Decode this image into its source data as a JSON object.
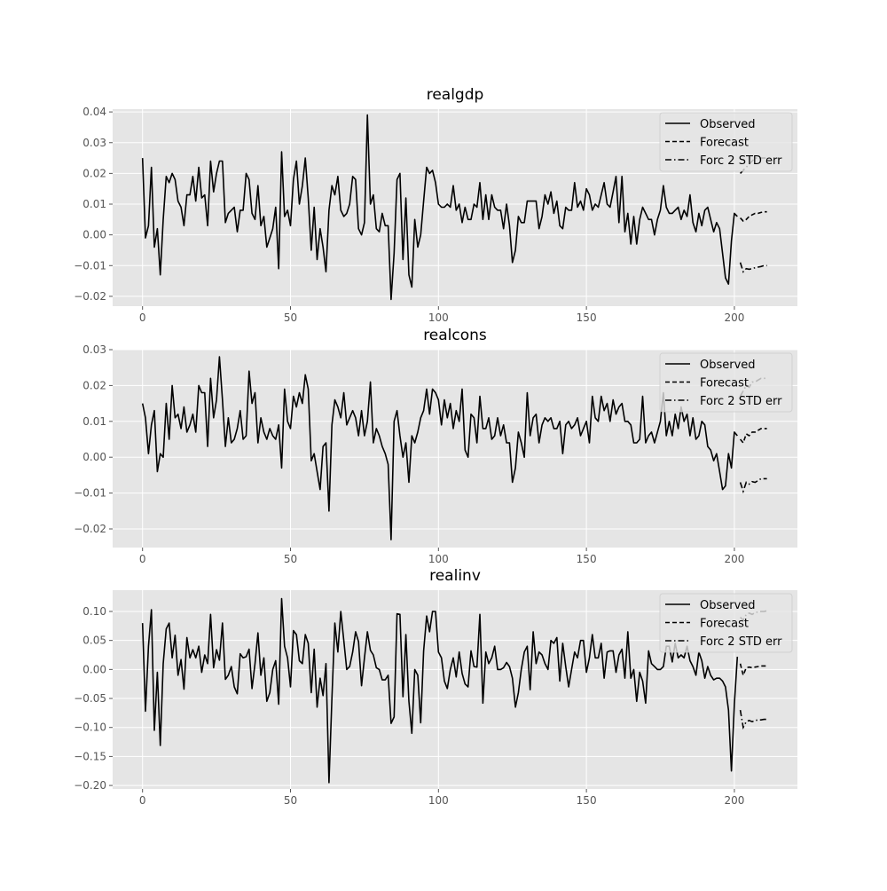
{
  "chart_data": [
    {
      "type": "line",
      "title": "realgdp",
      "xlim": [
        -10.1,
        221.3
      ],
      "ylim": [
        -0.0232,
        0.0409
      ],
      "xticks": [
        0,
        50,
        100,
        150,
        200
      ],
      "yticks": [
        -0.02,
        -0.01,
        0.0,
        0.01,
        0.02,
        0.03,
        0.04
      ],
      "ytick_labels": [
        "−0.02",
        "−0.01",
        "0.00",
        "0.01",
        "0.02",
        "0.03",
        "0.04"
      ],
      "grid": true,
      "legend_placement": "upper-right",
      "legend": [
        "Observed",
        "Forecast",
        "Forc 2 STD err"
      ],
      "observed": [
        0.025,
        -0.001,
        0.003,
        0.022,
        -0.004,
        0.002,
        -0.013,
        0.005,
        0.019,
        0.017,
        0.02,
        0.018,
        0.011,
        0.009,
        0.003,
        0.013,
        0.013,
        0.019,
        0.011,
        0.022,
        0.012,
        0.013,
        0.003,
        0.024,
        0.014,
        0.02,
        0.024,
        0.024,
        0.004,
        0.007,
        0.008,
        0.009,
        0.001,
        0.008,
        0.008,
        0.02,
        0.018,
        0.007,
        0.005,
        0.016,
        0.003,
        0.006,
        -0.004,
        -0.001,
        0.002,
        0.009,
        -0.011,
        0.027,
        0.006,
        0.008,
        0.003,
        0.018,
        0.024,
        0.01,
        0.016,
        0.025,
        0.012,
        -0.005,
        0.009,
        -0.008,
        0.002,
        -0.004,
        -0.012,
        0.008,
        0.016,
        0.013,
        0.019,
        0.008,
        0.006,
        0.007,
        0.01,
        0.019,
        0.018,
        0.002,
        0.0,
        0.004,
        0.039,
        0.01,
        0.013,
        0.002,
        0.001,
        0.007,
        0.003,
        0.003,
        -0.021,
        -0.006,
        0.018,
        0.02,
        -0.008,
        0.012,
        -0.013,
        -0.017,
        0.005,
        -0.004,
        0.0,
        0.011,
        0.022,
        0.02,
        0.021,
        0.017,
        0.01,
        0.009,
        0.009,
        0.01,
        0.009,
        0.016,
        0.008,
        0.01,
        0.004,
        0.009,
        0.005,
        0.005,
        0.01,
        0.009,
        0.017,
        0.005,
        0.013,
        0.005,
        0.013,
        0.009,
        0.008,
        0.008,
        0.002,
        0.01,
        0.003,
        -0.009,
        -0.005,
        0.006,
        0.004,
        0.004,
        0.011,
        0.011,
        0.011,
        0.011,
        0.002,
        0.006,
        0.013,
        0.01,
        0.014,
        0.007,
        0.011,
        0.003,
        0.002,
        0.009,
        0.008,
        0.008,
        0.017,
        0.009,
        0.011,
        0.008,
        0.015,
        0.013,
        0.008,
        0.01,
        0.009,
        0.013,
        0.017,
        0.01,
        0.009,
        0.014,
        0.019,
        0.004,
        0.019,
        0.001,
        0.007,
        -0.003,
        0.006,
        -0.003,
        0.005,
        0.009,
        0.007,
        0.005,
        0.005,
        0.0,
        0.005,
        0.008,
        0.016,
        0.009,
        0.007,
        0.007,
        0.008,
        0.009,
        0.005,
        0.008,
        0.006,
        0.013,
        0.004,
        0.001,
        0.007,
        0.003,
        0.008,
        0.009,
        0.005,
        0.001,
        0.004,
        0.002,
        -0.006,
        -0.014,
        -0.016,
        -0.002,
        0.007,
        0.006
      ],
      "forecast_x": [
        202,
        203,
        204,
        205,
        206,
        207,
        208,
        209,
        210,
        211
      ],
      "forecast": [
        0.0055,
        0.0045,
        0.005,
        0.006,
        0.0065,
        0.007,
        0.007,
        0.0073,
        0.0075,
        0.0075
      ],
      "lower": [
        -0.009,
        -0.012,
        -0.011,
        -0.0112,
        -0.011,
        -0.0107,
        -0.0105,
        -0.0103,
        -0.01,
        -0.01
      ],
      "upper": [
        0.02,
        0.021,
        0.022,
        0.023,
        0.024,
        0.025,
        0.025,
        0.025,
        0.025,
        0.025
      ]
    },
    {
      "type": "line",
      "title": "realcons",
      "xlim": [
        -10.1,
        221.3
      ],
      "ylim": [
        -0.0252,
        0.03
      ],
      "xticks": [
        0,
        50,
        100,
        150,
        200
      ],
      "yticks": [
        -0.02,
        -0.01,
        0.0,
        0.01,
        0.02,
        0.03
      ],
      "ytick_labels": [
        "−0.02",
        "−0.01",
        "0.00",
        "0.01",
        "0.02",
        "0.03"
      ],
      "grid": true,
      "legend_placement": "upper-right",
      "legend": [
        "Observed",
        "Forecast",
        "Forc 2 STD err"
      ],
      "observed": [
        0.015,
        0.011,
        0.001,
        0.009,
        0.013,
        -0.004,
        0.001,
        0.0,
        0.015,
        0.005,
        0.02,
        0.011,
        0.012,
        0.008,
        0.014,
        0.007,
        0.009,
        0.012,
        0.007,
        0.02,
        0.018,
        0.018,
        0.003,
        0.022,
        0.011,
        0.016,
        0.028,
        0.016,
        0.003,
        0.011,
        0.004,
        0.005,
        0.008,
        0.013,
        0.005,
        0.006,
        0.024,
        0.015,
        0.018,
        0.004,
        0.011,
        0.007,
        0.005,
        0.008,
        0.006,
        0.005,
        0.009,
        -0.003,
        0.019,
        0.01,
        0.008,
        0.017,
        0.014,
        0.018,
        0.015,
        0.023,
        0.019,
        -0.001,
        0.001,
        -0.004,
        -0.009,
        0.003,
        0.004,
        -0.015,
        0.009,
        0.016,
        0.014,
        0.011,
        0.018,
        0.009,
        0.011,
        0.013,
        0.011,
        0.006,
        0.013,
        0.006,
        0.01,
        0.021,
        0.004,
        0.008,
        0.006,
        0.003,
        0.001,
        -0.002,
        -0.023,
        0.01,
        0.013,
        0.006,
        0.0,
        0.004,
        -0.007,
        0.006,
        0.004,
        0.007,
        0.011,
        0.013,
        0.019,
        0.012,
        0.019,
        0.018,
        0.016,
        0.009,
        0.016,
        0.011,
        0.015,
        0.008,
        0.013,
        0.01,
        0.019,
        0.002,
        0.0,
        0.012,
        0.011,
        0.004,
        0.017,
        0.008,
        0.008,
        0.011,
        0.005,
        0.006,
        0.011,
        0.006,
        0.009,
        0.004,
        0.004,
        -0.007,
        -0.003,
        0.007,
        0.004,
        0.0,
        0.018,
        0.006,
        0.011,
        0.012,
        0.004,
        0.009,
        0.011,
        0.01,
        0.011,
        0.008,
        0.008,
        0.01,
        0.001,
        0.009,
        0.01,
        0.008,
        0.009,
        0.011,
        0.006,
        0.008,
        0.01,
        0.004,
        0.017,
        0.011,
        0.01,
        0.017,
        0.013,
        0.015,
        0.01,
        0.016,
        0.012,
        0.014,
        0.015,
        0.01,
        0.01,
        0.009,
        0.004,
        0.004,
        0.005,
        0.017,
        0.004,
        0.006,
        0.007,
        0.004,
        0.007,
        0.01,
        0.018,
        0.006,
        0.01,
        0.006,
        0.012,
        0.008,
        0.014,
        0.01,
        0.012,
        0.006,
        0.011,
        0.005,
        0.006,
        0.01,
        0.009,
        0.003,
        0.002,
        -0.001,
        0.001,
        -0.004,
        -0.009,
        -0.008,
        0.001,
        -0.003,
        0.007,
        0.006
      ],
      "forecast_x": [
        202,
        203,
        204,
        205,
        206,
        207,
        208,
        209,
        210,
        211
      ],
      "forecast": [
        0.005,
        0.004,
        0.0065,
        0.006,
        0.007,
        0.007,
        0.0075,
        0.008,
        0.008,
        0.008
      ],
      "lower": [
        -0.007,
        -0.0095,
        -0.007,
        -0.0075,
        -0.0068,
        -0.007,
        -0.0065,
        -0.006,
        -0.006,
        -0.006
      ],
      "upper": [
        0.017,
        0.0185,
        0.02,
        0.0195,
        0.021,
        0.021,
        0.0215,
        0.022,
        0.022,
        0.022
      ]
    },
    {
      "type": "line",
      "title": "realinv",
      "xlim": [
        -10.1,
        221.3
      ],
      "ylim": [
        -0.206,
        0.1367
      ],
      "xticks": [
        0,
        50,
        100,
        150,
        200
      ],
      "yticks": [
        -0.2,
        -0.15,
        -0.1,
        -0.05,
        0.0,
        0.05,
        0.1
      ],
      "ytick_labels": [
        "−0.20",
        "−0.15",
        "−0.10",
        "−0.05",
        "0.00",
        "0.05",
        "0.10"
      ],
      "grid": true,
      "legend_placement": "upper-right",
      "legend": [
        "Observed",
        "Forecast",
        "Forc 2 STD err"
      ],
      "observed": [
        0.08,
        -0.072,
        0.04,
        0.103,
        -0.105,
        -0.005,
        -0.131,
        0.01,
        0.07,
        0.08,
        0.02,
        0.059,
        -0.01,
        0.017,
        -0.034,
        0.055,
        0.02,
        0.034,
        0.02,
        0.04,
        -0.005,
        0.025,
        0.01,
        0.095,
        0.003,
        0.034,
        0.016,
        0.08,
        -0.017,
        -0.01,
        0.005,
        -0.03,
        -0.042,
        0.027,
        0.02,
        0.022,
        0.035,
        -0.033,
        0.01,
        0.063,
        -0.01,
        0.02,
        -0.055,
        -0.04,
        0.0,
        0.015,
        -0.06,
        0.122,
        0.04,
        0.02,
        -0.03,
        0.067,
        0.06,
        0.015,
        0.01,
        0.06,
        0.045,
        -0.04,
        0.035,
        -0.065,
        -0.015,
        -0.045,
        0.01,
        -0.195,
        -0.05,
        0.08,
        0.03,
        0.1,
        0.05,
        0.0,
        0.005,
        0.03,
        0.065,
        0.048,
        -0.028,
        0.02,
        0.065,
        0.033,
        0.025,
        0.003,
        0.0,
        -0.018,
        -0.018,
        -0.01,
        -0.093,
        -0.082,
        0.096,
        0.095,
        -0.047,
        0.06,
        -0.055,
        -0.11,
        0.0,
        -0.01,
        -0.092,
        0.032,
        0.092,
        0.065,
        0.1,
        0.1,
        0.03,
        0.02,
        -0.02,
        -0.033,
        0.0,
        0.02,
        -0.013,
        0.03,
        -0.007,
        -0.025,
        -0.03,
        0.032,
        0.005,
        0.004,
        0.095,
        -0.058,
        0.03,
        0.01,
        0.02,
        0.04,
        0.0,
        0.0,
        0.003,
        0.012,
        0.005,
        -0.015,
        -0.065,
        -0.04,
        0.0,
        0.03,
        0.04,
        -0.035,
        0.065,
        0.01,
        0.03,
        0.025,
        0.01,
        0.0,
        0.05,
        0.045,
        0.055,
        -0.02,
        0.045,
        0.005,
        -0.03,
        0.0,
        0.03,
        0.02,
        0.05,
        0.05,
        -0.005,
        0.02,
        0.06,
        0.02,
        0.02,
        0.045,
        -0.015,
        0.03,
        0.032,
        0.032,
        -0.005,
        0.025,
        0.035,
        -0.015,
        0.065,
        -0.015,
        0.0,
        -0.055,
        -0.005,
        -0.02,
        -0.058,
        0.032,
        0.01,
        0.005,
        0.0,
        0.0,
        0.005,
        0.04,
        0.04,
        0.013,
        0.045,
        0.02,
        0.025,
        0.02,
        0.04,
        0.015,
        0.005,
        -0.01,
        0.03,
        0.015,
        -0.015,
        0.005,
        -0.01,
        -0.018,
        -0.015,
        -0.015,
        -0.02,
        -0.03,
        -0.07,
        -0.175,
        -0.06,
        0.022
      ],
      "forecast_x": [
        202,
        203,
        204,
        205,
        206,
        207,
        208,
        209,
        210,
        211
      ],
      "forecast": [
        0.01,
        -0.01,
        0.003,
        0.004,
        0.003,
        0.004,
        0.005,
        0.006,
        0.006,
        0.006
      ],
      "lower": [
        -0.07,
        -0.1,
        -0.09,
        -0.088,
        -0.09,
        -0.088,
        -0.087,
        -0.087,
        -0.086,
        -0.086
      ],
      "upper": [
        0.09,
        0.085,
        0.095,
        0.097,
        0.095,
        0.098,
        0.099,
        0.1,
        0.1,
        0.101
      ]
    }
  ],
  "colors": {
    "plot_background": "#e5e5e5",
    "grid": "#ffffff",
    "line": "#000000",
    "tick_text": "#555555"
  }
}
